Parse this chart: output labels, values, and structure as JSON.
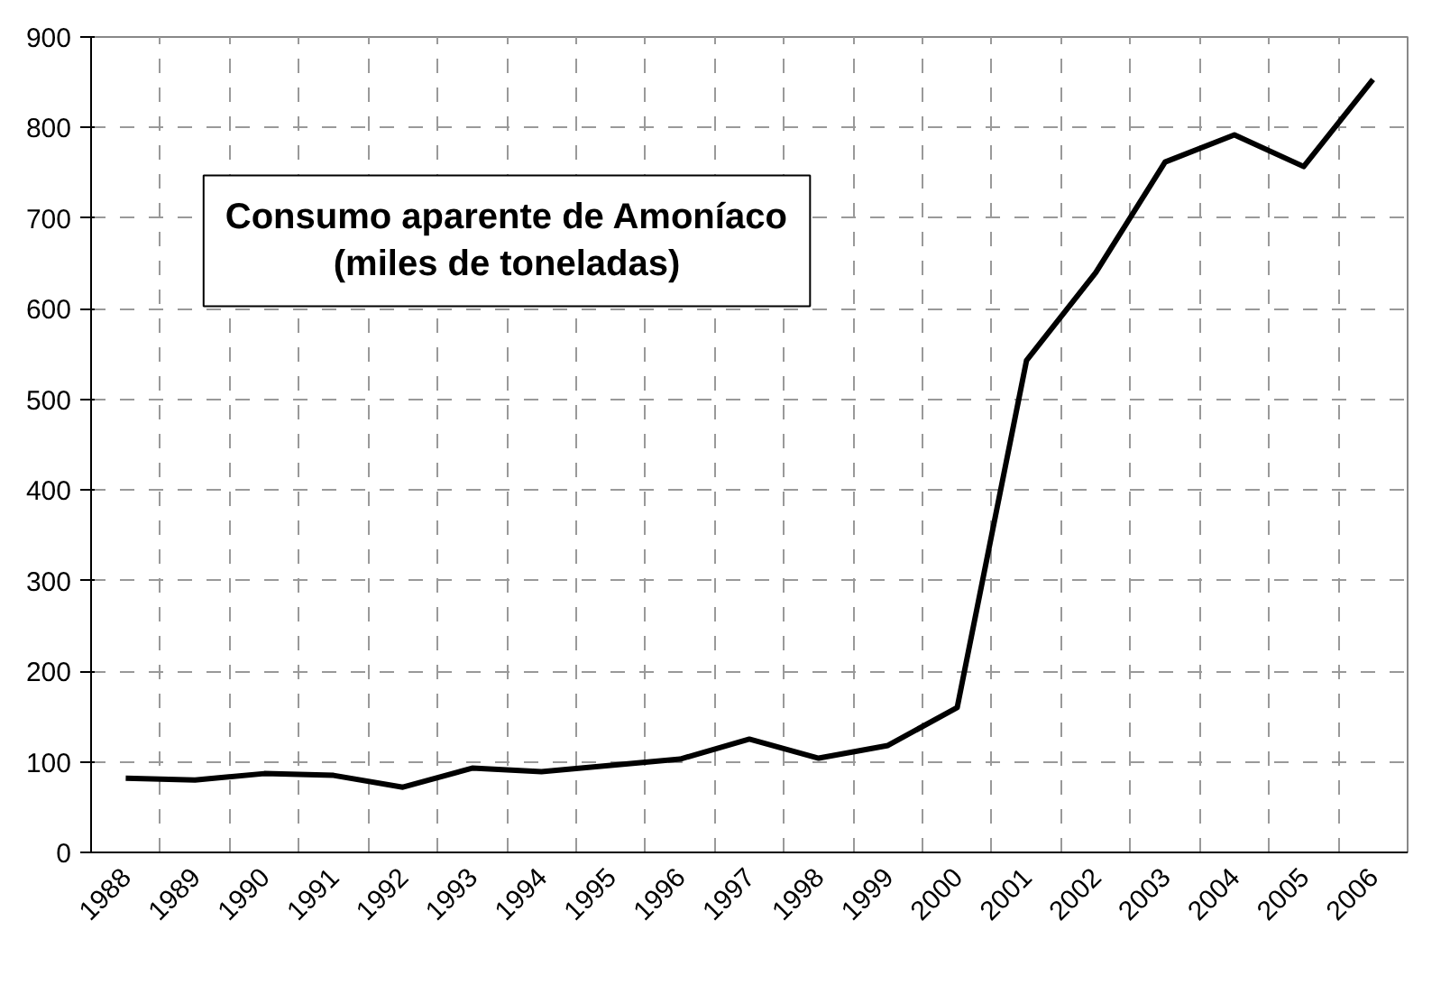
{
  "chart_data": {
    "type": "line",
    "title": "Consumo aparente de Amoníaco\n(miles de toneladas)",
    "categories": [
      "1988",
      "1989",
      "1990",
      "1991",
      "1992",
      "1993",
      "1994",
      "1995",
      "1996",
      "1997",
      "1998",
      "1999",
      "2000",
      "2001",
      "2002",
      "2003",
      "2004",
      "2005",
      "2006"
    ],
    "series": [
      {
        "color": "#000000",
        "values": [
          82,
          80,
          87,
          85,
          72,
          93,
          89,
          96,
          103,
          125,
          104,
          118,
          160,
          543,
          640,
          762,
          792,
          757,
          853
        ]
      }
    ],
    "ylim": [
      0,
      900
    ],
    "yticks": [
      0,
      100,
      200,
      300,
      400,
      500,
      600,
      700,
      800,
      900
    ],
    "grid": true,
    "marker": "none",
    "line_style": "solid"
  }
}
